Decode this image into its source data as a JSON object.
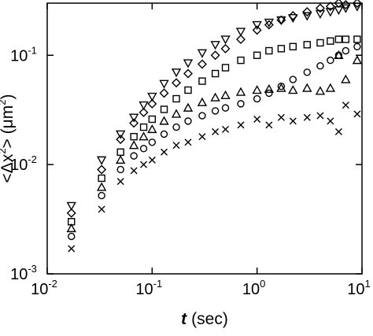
{
  "chart_data": {
    "type": "scatter",
    "log_x": true,
    "log_y": true,
    "xlabel": [
      "t",
      "(sec)"
    ],
    "ylabel": [
      "<Δx",
      "2",
      "> (μm",
      "2",
      ")"
    ],
    "x": [
      0.017,
      0.033,
      0.05,
      0.067,
      0.083,
      0.1,
      0.13,
      0.17,
      0.22,
      0.3,
      0.4,
      0.5,
      0.7,
      1.0,
      1.3,
      1.7,
      2.2,
      3,
      4,
      5,
      6,
      7,
      9
    ],
    "xlim": [
      0.01,
      10
    ],
    "ylim": [
      0.001,
      0.3
    ],
    "xticks": [
      {
        "value": 0.01,
        "label": "10",
        "exponent": "-2"
      },
      {
        "value": 0.1,
        "label": "10",
        "exponent": "-1"
      },
      {
        "value": 1,
        "label": "10",
        "exponent": "0"
      },
      {
        "value": 10,
        "label": "10",
        "exponent": "1"
      }
    ],
    "yticks": [
      {
        "value": 0.001,
        "label": "10",
        "exponent": "-3"
      },
      {
        "value": 0.01,
        "label": "10",
        "exponent": "-2"
      },
      {
        "value": 0.1,
        "label": "10",
        "exponent": "-1"
      }
    ],
    "series": [
      {
        "marker": "down-triangle",
        "color": "#000000",
        "values": [
          0.0042,
          0.011,
          0.019,
          0.027,
          0.035,
          0.042,
          0.055,
          0.07,
          0.085,
          0.105,
          0.125,
          0.14,
          0.165,
          0.19,
          0.2,
          0.21,
          0.22,
          0.23,
          0.24,
          0.25,
          0.26,
          0.27,
          0.28
        ]
      },
      {
        "marker": "diamond",
        "color": "#000000",
        "values": [
          0.0036,
          0.009,
          0.017,
          0.024,
          0.03,
          0.036,
          0.045,
          0.056,
          0.068,
          0.083,
          0.1,
          0.115,
          0.14,
          0.17,
          0.19,
          0.21,
          0.23,
          0.25,
          0.27,
          0.28,
          0.3,
          0.29,
          0.3
        ]
      },
      {
        "marker": "square",
        "color": "#000000",
        "values": [
          0.003,
          0.0075,
          0.013,
          0.018,
          0.022,
          0.026,
          0.032,
          0.04,
          0.048,
          0.058,
          0.068,
          0.077,
          0.09,
          0.1,
          0.11,
          0.115,
          0.12,
          0.125,
          0.13,
          0.135,
          0.14,
          0.14,
          0.14
        ]
      },
      {
        "marker": "up-triangle",
        "color": "#000000",
        "values": [
          0.0026,
          0.0062,
          0.011,
          0.015,
          0.018,
          0.021,
          0.025,
          0.029,
          0.033,
          0.037,
          0.041,
          0.043,
          0.046,
          0.048,
          0.049,
          0.05,
          0.048,
          0.05,
          0.047,
          0.05,
          0.1,
          0.06,
          0.09
        ]
      },
      {
        "marker": "circle",
        "color": "#000000",
        "values": [
          0.0022,
          0.0052,
          0.009,
          0.012,
          0.014,
          0.016,
          0.019,
          0.022,
          0.025,
          0.028,
          0.031,
          0.033,
          0.036,
          0.04,
          0.045,
          0.052,
          0.06,
          0.07,
          0.08,
          0.09,
          0.1,
          0.11,
          0.12
        ]
      },
      {
        "marker": "cross",
        "color": "#000000",
        "values": [
          0.0017,
          0.0039,
          0.007,
          0.0088,
          0.01,
          0.011,
          0.013,
          0.015,
          0.016,
          0.018,
          0.02,
          0.021,
          0.023,
          0.026,
          0.023,
          0.027,
          0.025,
          0.027,
          0.028,
          0.025,
          0.02,
          0.035,
          0.029
        ]
      }
    ]
  }
}
